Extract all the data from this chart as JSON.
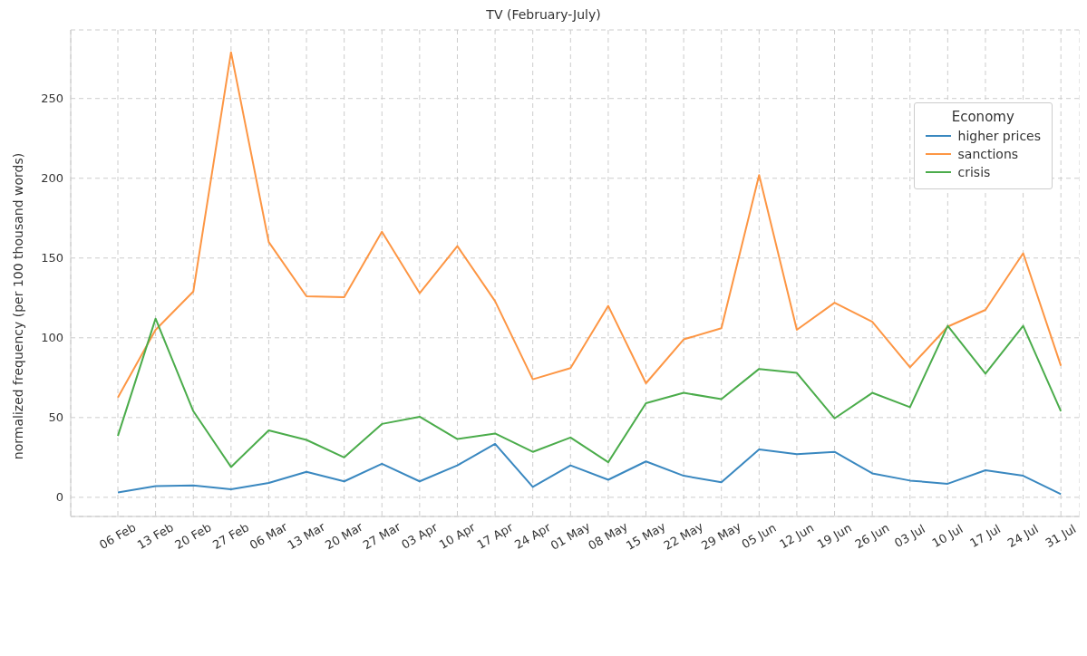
{
  "chart_data": {
    "type": "line",
    "title": "TV (February-July)",
    "ylabel": "normalized frequency (per 100 thousand words)",
    "legend_title": "Economy",
    "legend": "top right",
    "grid": true,
    "marker": "none",
    "line_style": "solid",
    "categories": [
      "06 Feb",
      "13 Feb",
      "20 Feb",
      "27 Feb",
      "06 Mar",
      "13 Mar",
      "20 Mar",
      "27 Mar",
      "03 Apr",
      "10 Apr",
      "17 Apr",
      "24 Apr",
      "01 May",
      "08 May",
      "15 May",
      "22 May",
      "29 May",
      "05 Jun",
      "12 Jun",
      "19 Jun",
      "26 Jun",
      "03 Jul",
      "10 Jul",
      "17 Jul",
      "24 Jul",
      "31 Jul"
    ],
    "ylim": [
      -12,
      293
    ],
    "yticks": [
      0,
      50,
      100,
      150,
      200,
      250
    ],
    "series": [
      {
        "name": "higher prices",
        "color": "#3a88c0",
        "values": [
          3,
          7,
          7.5,
          5,
          9,
          16,
          10,
          21,
          10,
          20,
          33.5,
          6.5,
          20,
          11,
          22.5,
          13.5,
          9.5,
          30,
          27,
          28.5,
          15,
          10.5,
          8.5,
          17,
          13.5,
          2
        ]
      },
      {
        "name": "sanctions",
        "color": "#fd9644",
        "values": [
          62.5,
          105,
          129,
          279,
          160,
          126,
          125.5,
          166.5,
          128,
          157.5,
          123,
          74,
          81,
          120,
          71.5,
          99,
          106,
          202,
          105,
          122,
          110,
          81.5,
          107,
          117.5,
          153,
          82.5
        ]
      },
      {
        "name": "crisis",
        "color": "#4bac4b",
        "values": [
          38.5,
          112,
          54,
          19,
          42,
          36,
          25,
          46,
          50.5,
          36.5,
          40,
          28.5,
          37.5,
          22,
          59,
          65.5,
          61.5,
          80.5,
          78,
          49.5,
          65.5,
          56.5,
          107.5,
          77.5,
          107.5,
          54
        ]
      }
    ]
  }
}
